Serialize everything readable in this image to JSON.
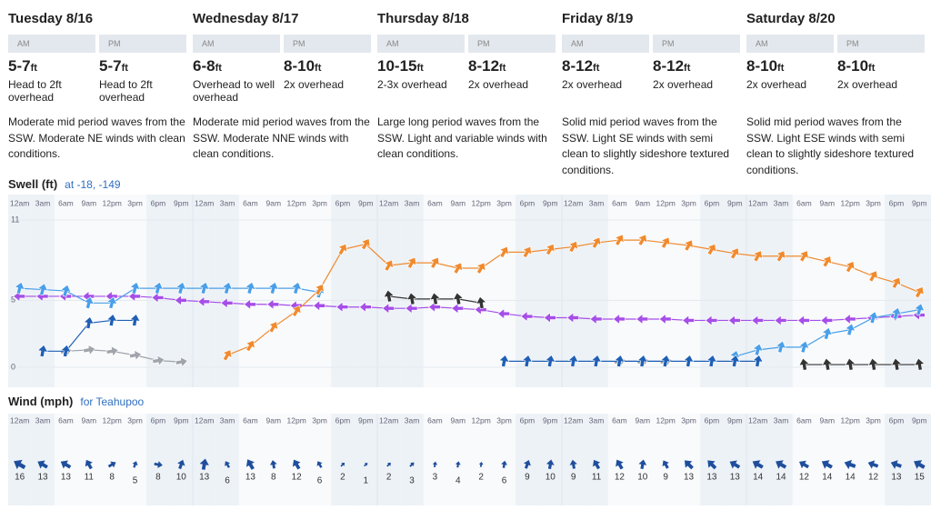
{
  "days": [
    {
      "name": "Tuesday 8/16",
      "am": {
        "label": "AM",
        "height": "5-7",
        "unit": "ft",
        "note": "Head to 2ft overhead"
      },
      "pm": {
        "label": "PM",
        "height": "5-7",
        "unit": "ft",
        "note": "Head to 2ft overhead"
      },
      "description": "Moderate mid period waves from the SSW. Moderate NE winds with clean conditions."
    },
    {
      "name": "Wednesday 8/17",
      "am": {
        "label": "AM",
        "height": "6-8",
        "unit": "ft",
        "note": "Overhead to well overhead"
      },
      "pm": {
        "label": "PM",
        "height": "8-10",
        "unit": "ft",
        "note": "2x overhead"
      },
      "description": "Moderate mid period waves from the SSW. Moderate NNE winds with clean conditions."
    },
    {
      "name": "Thursday 8/18",
      "am": {
        "label": "AM",
        "height": "10-15",
        "unit": "ft",
        "note": "2-3x overhead"
      },
      "pm": {
        "label": "PM",
        "height": "8-12",
        "unit": "ft",
        "note": "2x overhead"
      },
      "description": "Large long period waves from the SSW. Light and variable winds with clean conditions."
    },
    {
      "name": "Friday 8/19",
      "am": {
        "label": "AM",
        "height": "8-12",
        "unit": "ft",
        "note": "2x overhead"
      },
      "pm": {
        "label": "PM",
        "height": "8-12",
        "unit": "ft",
        "note": "2x overhead"
      },
      "description": "Solid mid period waves from the SSW. Light SE winds with semi clean to slightly sideshore textured conditions."
    },
    {
      "name": "Saturday 8/20",
      "am": {
        "label": "AM",
        "height": "8-10",
        "unit": "ft",
        "note": "2x overhead"
      },
      "pm": {
        "label": "PM",
        "height": "8-10",
        "unit": "ft",
        "note": "2x overhead"
      },
      "description": "Solid mid period waves from the SSW. Light ESE winds with semi clean to slightly sideshore textured conditions."
    }
  ],
  "chart_data": [
    {
      "type": "line",
      "title": "Swell (ft)",
      "subtitle": "at -18, -149",
      "categories": [
        "12am",
        "3am",
        "6am",
        "9am",
        "12pm",
        "3pm",
        "6pm",
        "9pm",
        "12am",
        "3am",
        "6am",
        "9am",
        "12pm",
        "3pm",
        "6pm",
        "9pm",
        "12am",
        "3am",
        "6am",
        "9am",
        "12pm",
        "3pm",
        "6pm",
        "9pm",
        "12am",
        "3am",
        "6am",
        "9am",
        "12pm",
        "3pm",
        "6pm",
        "9pm",
        "12am",
        "3am",
        "6am",
        "9am",
        "12pm",
        "3pm",
        "6pm",
        "9pm"
      ],
      "ylim": [
        0,
        11
      ],
      "yticks": [
        0,
        5,
        11
      ],
      "series": [
        {
          "color": "#a64ee8",
          "direction": 270,
          "values": [
            5.3,
            5.3,
            5.3,
            5.3,
            5.3,
            5.3,
            5.2,
            5.0,
            4.9,
            4.8,
            4.7,
            4.7,
            4.6,
            4.6,
            4.5,
            4.5,
            4.4,
            4.4,
            4.5,
            4.4,
            4.3,
            4.0,
            3.8,
            3.7,
            3.7,
            3.6,
            3.6,
            3.6,
            3.6,
            3.5,
            3.5,
            3.5,
            3.5,
            3.5,
            3.5,
            3.5,
            3.6,
            3.7,
            3.8,
            3.9
          ]
        },
        {
          "color": "#4a9fe8",
          "direction": 15,
          "values": [
            5.9,
            5.8,
            5.7,
            4.8,
            4.8,
            5.9,
            5.9,
            5.9,
            5.9,
            5.9,
            5.9,
            5.9,
            5.9,
            5.6,
            null,
            null,
            null,
            null,
            null,
            null,
            null,
            null,
            null,
            null,
            null,
            null,
            null,
            null,
            null,
            null,
            null,
            0.8,
            1.3,
            1.5,
            1.5,
            2.5,
            2.8,
            3.7,
            4.0,
            4.3
          ]
        },
        {
          "color": "#a0a4ab",
          "direction": 80,
          "values": [
            null,
            null,
            1.2,
            1.3,
            1.2,
            0.9,
            0.5,
            0.4,
            null,
            null,
            null,
            null,
            null,
            null,
            null,
            null,
            null,
            null,
            null,
            null,
            null,
            null,
            null,
            null,
            null,
            null,
            0.45,
            0.45,
            0.45,
            null,
            null,
            null,
            null,
            null,
            null,
            null,
            null,
            null,
            null,
            null
          ]
        },
        {
          "color": "#1f5fb5",
          "direction": 10,
          "values": [
            null,
            1.2,
            1.2,
            3.3,
            3.5,
            3.5,
            null,
            null,
            null,
            null,
            null,
            null,
            null,
            null,
            null,
            null,
            null,
            null,
            null,
            null,
            null,
            0.45,
            0.45,
            0.45,
            0.45,
            0.45,
            0.45,
            0.45,
            0.45,
            0.45,
            0.45,
            0.45,
            0.45,
            null,
            null,
            null,
            null,
            null,
            null,
            null
          ]
        },
        {
          "color": "#333333",
          "direction": 350,
          "values": [
            null,
            null,
            null,
            null,
            null,
            null,
            null,
            null,
            null,
            null,
            null,
            null,
            null,
            null,
            null,
            null,
            5.3,
            5.1,
            5.1,
            5.1,
            4.8,
            null,
            null,
            null,
            null,
            null,
            null,
            null,
            null,
            null,
            null,
            null,
            null,
            null,
            0.2,
            0.2,
            0.2,
            0.2,
            0.2,
            0.2
          ]
        },
        {
          "color": "#f08a2e",
          "direction": 30,
          "values": [
            null,
            null,
            null,
            null,
            null,
            null,
            null,
            null,
            null,
            0.9,
            1.6,
            3.0,
            4.2,
            5.8,
            8.8,
            9.2,
            7.6,
            7.8,
            7.8,
            7.4,
            7.4,
            8.6,
            8.6,
            8.8,
            9.0,
            9.3,
            9.5,
            9.5,
            9.3,
            9.1,
            8.8,
            8.5,
            8.3,
            8.3,
            8.3,
            7.9,
            7.5,
            6.8,
            6.3,
            5.6
          ]
        }
      ]
    },
    {
      "type": "wind",
      "title": "Wind (mph)",
      "subtitle": "for Teahupoo",
      "color": "#1f4e9c",
      "categories": [
        "12am",
        "3am",
        "6am",
        "9am",
        "12pm",
        "3pm",
        "6pm",
        "9pm",
        "12am",
        "3am",
        "6am",
        "9am",
        "12pm",
        "3pm",
        "6pm",
        "9pm",
        "12am",
        "3am",
        "6am",
        "9am",
        "12pm",
        "3pm",
        "6pm",
        "9pm",
        "12am",
        "3am",
        "6am",
        "9am",
        "12pm",
        "3pm",
        "6pm",
        "9pm",
        "12am",
        "3am",
        "6am",
        "9am",
        "12pm",
        "3pm",
        "6pm",
        "9pm"
      ],
      "values": [
        16,
        13,
        13,
        11,
        8,
        5,
        8,
        10,
        13,
        6,
        13,
        8,
        12,
        6,
        2,
        1,
        2,
        3,
        3,
        4,
        2,
        6,
        9,
        10,
        9,
        11,
        12,
        10,
        9,
        13,
        13,
        13,
        14,
        14,
        12,
        14,
        14,
        12,
        13,
        15
      ],
      "directions": [
        300,
        300,
        300,
        330,
        60,
        20,
        100,
        20,
        10,
        330,
        330,
        350,
        330,
        330,
        45,
        45,
        45,
        45,
        10,
        10,
        10,
        10,
        20,
        10,
        350,
        330,
        330,
        10,
        330,
        315,
        315,
        300,
        300,
        300,
        300,
        300,
        290,
        290,
        290,
        300
      ]
    }
  ]
}
